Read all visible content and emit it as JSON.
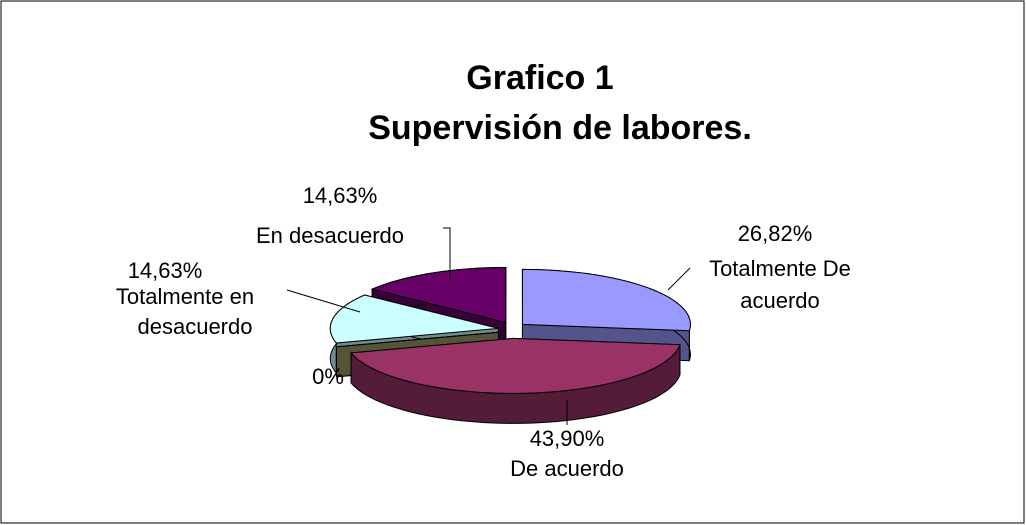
{
  "chart_data": {
    "type": "pie",
    "title": "Grafico 1",
    "subtitle": "Supervisión de labores.",
    "categories": [
      "Totalmente De acuerdo",
      "De acuerdo",
      null,
      "Totalmente en desacuerdo",
      "En desacuerdo"
    ],
    "values": [
      26.82,
      43.9,
      0,
      14.63,
      14.63
    ],
    "value_labels": [
      "26,82%",
      "43,90%",
      "0%",
      "14,63%",
      "14,63%"
    ],
    "colors": [
      "#9999ff",
      "#993366",
      "#999966",
      "#ccffff",
      "#660066"
    ]
  }
}
